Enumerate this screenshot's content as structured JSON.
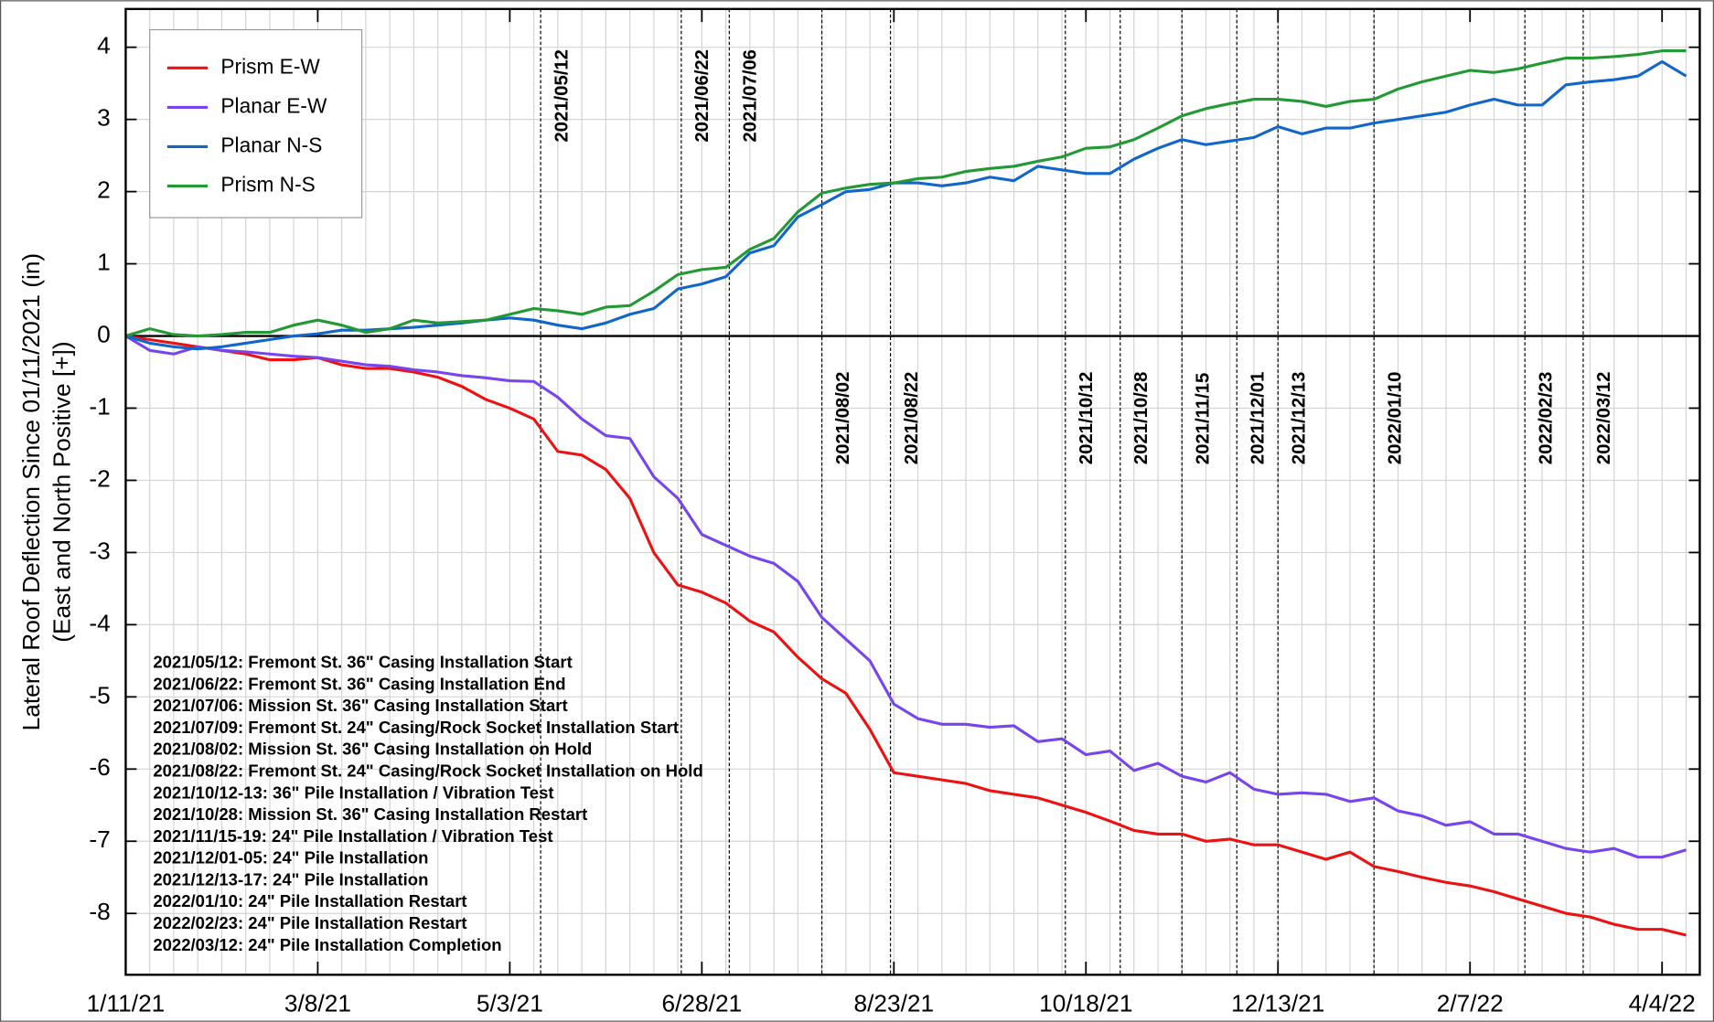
{
  "chart_data": {
    "type": "line",
    "y_label": "Lateral Roof Deflection Since 01/11/2021 (in)",
    "y_label_2": "(East and North Positive [+])",
    "xlim": [
      "2021-01-11",
      "2022-04-15"
    ],
    "xticks": [
      {
        "value": "2021-01-11",
        "label": "1/11/21"
      },
      {
        "value": "2021-03-08",
        "label": "3/8/21"
      },
      {
        "value": "2021-05-03",
        "label": "5/3/21"
      },
      {
        "value": "2021-06-28",
        "label": "6/28/21"
      },
      {
        "value": "2021-08-23",
        "label": "8/23/21"
      },
      {
        "value": "2021-10-18",
        "label": "10/18/21"
      },
      {
        "value": "2021-12-13",
        "label": "12/13/21"
      },
      {
        "value": "2022-02-07",
        "label": "2/7/22"
      },
      {
        "value": "2022-04-04",
        "label": "4/4/22"
      }
    ],
    "ylim": [
      -8.85,
      4.53
    ],
    "yticks": [
      -8,
      -7,
      -6,
      -5,
      -4,
      -3,
      -2,
      -1,
      0,
      1,
      2,
      3,
      4
    ],
    "grid": true,
    "legend": "upper left",
    "x": [
      "2021-01-11",
      "2021-01-18",
      "2021-01-25",
      "2021-02-01",
      "2021-02-08",
      "2021-02-15",
      "2021-02-22",
      "2021-03-01",
      "2021-03-08",
      "2021-03-15",
      "2021-03-22",
      "2021-03-29",
      "2021-04-05",
      "2021-04-12",
      "2021-04-19",
      "2021-04-26",
      "2021-05-03",
      "2021-05-10",
      "2021-05-17",
      "2021-05-24",
      "2021-05-31",
      "2021-06-07",
      "2021-06-14",
      "2021-06-21",
      "2021-06-28",
      "2021-07-05",
      "2021-07-12",
      "2021-07-19",
      "2021-07-26",
      "2021-08-02",
      "2021-08-09",
      "2021-08-16",
      "2021-08-23",
      "2021-08-30",
      "2021-09-06",
      "2021-09-13",
      "2021-09-20",
      "2021-09-27",
      "2021-10-04",
      "2021-10-11",
      "2021-10-18",
      "2021-10-25",
      "2021-11-01",
      "2021-11-08",
      "2021-11-15",
      "2021-11-22",
      "2021-11-29",
      "2021-12-06",
      "2021-12-13",
      "2021-12-20",
      "2021-12-27",
      "2022-01-03",
      "2022-01-10",
      "2022-01-17",
      "2022-01-24",
      "2022-01-31",
      "2022-02-07",
      "2022-02-14",
      "2022-02-21",
      "2022-02-28",
      "2022-03-07",
      "2022-03-14",
      "2022-03-21",
      "2022-03-28",
      "2022-04-04",
      "2022-04-11"
    ],
    "series": [
      {
        "name": "Prism E-W",
        "color": "#ee1111",
        "values": [
          0,
          -0.05,
          -0.1,
          -0.15,
          -0.2,
          -0.25,
          -0.33,
          -0.33,
          -0.3,
          -0.4,
          -0.45,
          -0.45,
          -0.5,
          -0.57,
          -0.7,
          -0.88,
          -1.0,
          -1.15,
          -1.6,
          -1.65,
          -1.85,
          -2.25,
          -3.0,
          -3.45,
          -3.55,
          -3.7,
          -3.95,
          -4.1,
          -4.45,
          -4.75,
          -4.95,
          -5.45,
          -6.05,
          -6.1,
          -6.15,
          -6.2,
          -6.3,
          -6.35,
          -6.4,
          -6.5,
          -6.6,
          -6.72,
          -6.85,
          -6.9,
          -6.9,
          -7.0,
          -6.97,
          -7.05,
          -7.05,
          -7.15,
          -7.25,
          -7.15,
          -7.35,
          -7.42,
          -7.5,
          -7.57,
          -7.62,
          -7.7,
          -7.8,
          -7.9,
          -8.0,
          -8.05,
          -8.15,
          -8.22,
          -8.22,
          -8.3
        ]
      },
      {
        "name": "Planar E-W",
        "color": "#7744ee",
        "values": [
          0,
          -0.2,
          -0.25,
          -0.15,
          -0.2,
          -0.22,
          -0.25,
          -0.28,
          -0.3,
          -0.35,
          -0.4,
          -0.42,
          -0.47,
          -0.5,
          -0.55,
          -0.58,
          -0.62,
          -0.63,
          -0.85,
          -1.15,
          -1.38,
          -1.42,
          -1.95,
          -2.25,
          -2.75,
          -2.9,
          -3.05,
          -3.15,
          -3.4,
          -3.9,
          -4.2,
          -4.5,
          -5.1,
          -5.3,
          -5.38,
          -5.38,
          -5.42,
          -5.4,
          -5.62,
          -5.58,
          -5.8,
          -5.75,
          -6.02,
          -5.92,
          -6.1,
          -6.18,
          -6.05,
          -6.28,
          -6.35,
          -6.33,
          -6.35,
          -6.45,
          -6.4,
          -6.58,
          -6.65,
          -6.78,
          -6.73,
          -6.9,
          -6.9,
          -7.0,
          -7.1,
          -7.15,
          -7.1,
          -7.22,
          -7.22,
          -7.12
        ]
      },
      {
        "name": "Planar N-S",
        "color": "#1166cc",
        "values": [
          0,
          -0.1,
          -0.15,
          -0.18,
          -0.15,
          -0.1,
          -0.05,
          0.0,
          0.03,
          0.08,
          0.08,
          0.1,
          0.12,
          0.15,
          0.18,
          0.22,
          0.25,
          0.22,
          0.15,
          0.1,
          0.18,
          0.3,
          0.38,
          0.65,
          0.72,
          0.82,
          1.15,
          1.25,
          1.65,
          1.82,
          2.0,
          2.03,
          2.12,
          2.12,
          2.08,
          2.12,
          2.2,
          2.15,
          2.35,
          2.3,
          2.25,
          2.25,
          2.45,
          2.6,
          2.72,
          2.65,
          2.7,
          2.75,
          2.9,
          2.8,
          2.88,
          2.88,
          2.95,
          3.0,
          3.05,
          3.1,
          3.2,
          3.28,
          3.2,
          3.2,
          3.48,
          3.52,
          3.55,
          3.6,
          3.8,
          3.6
        ]
      },
      {
        "name": "Prism N-S",
        "color": "#229933",
        "values": [
          0,
          0.1,
          0.02,
          0.0,
          0.02,
          0.05,
          0.05,
          0.15,
          0.22,
          0.15,
          0.05,
          0.1,
          0.22,
          0.18,
          0.2,
          0.22,
          0.3,
          0.38,
          0.35,
          0.3,
          0.4,
          0.42,
          0.62,
          0.85,
          0.92,
          0.95,
          1.2,
          1.35,
          1.72,
          1.98,
          2.05,
          2.1,
          2.12,
          2.18,
          2.2,
          2.28,
          2.32,
          2.35,
          2.42,
          2.48,
          2.6,
          2.62,
          2.72,
          2.88,
          3.05,
          3.15,
          3.22,
          3.28,
          3.28,
          3.25,
          3.18,
          3.25,
          3.28,
          3.42,
          3.52,
          3.6,
          3.68,
          3.65,
          3.7,
          3.78,
          3.85,
          3.85,
          3.87,
          3.9,
          3.95,
          3.95
        ]
      }
    ],
    "events": [
      "2021/05/12",
      "2021/06/22",
      "2021/07/06",
      "2021/08/02",
      "2021/08/22",
      "2021/10/12",
      "2021/10/28",
      "2021/11/15",
      "2021/12/01",
      "2021/12/13",
      "2022/01/10",
      "2022/02/23",
      "2022/03/12"
    ],
    "annotations": [
      "2021/05/12: Fremont St. 36\" Casing Installation Start",
      "2021/06/22: Fremont St. 36\" Casing Installation End",
      "2021/07/06: Mission St.  36\" Casing Installation Start",
      "2021/07/09: Fremont St. 24\" Casing/Rock Socket Installation Start",
      "2021/08/02: Mission St.  36\" Casing Installation on Hold",
      "2021/08/22: Fremont St. 24\" Casing/Rock Socket Installation on Hold",
      "2021/10/12-13: 36\" Pile Installation / Vibration Test",
      "2021/10/28: Mission St.  36\" Casing Installation Restart",
      "2021/11/15-19: 24\" Pile Installation / Vibration Test",
      "2021/12/01-05: 24\" Pile Installation",
      "2021/12/13-17: 24\" Pile Installation",
      "2022/01/10: 24\" Pile Installation Restart",
      "2022/02/23: 24\" Pile Installation Restart",
      "2022/03/12: 24\" Pile Installation Completion"
    ]
  }
}
